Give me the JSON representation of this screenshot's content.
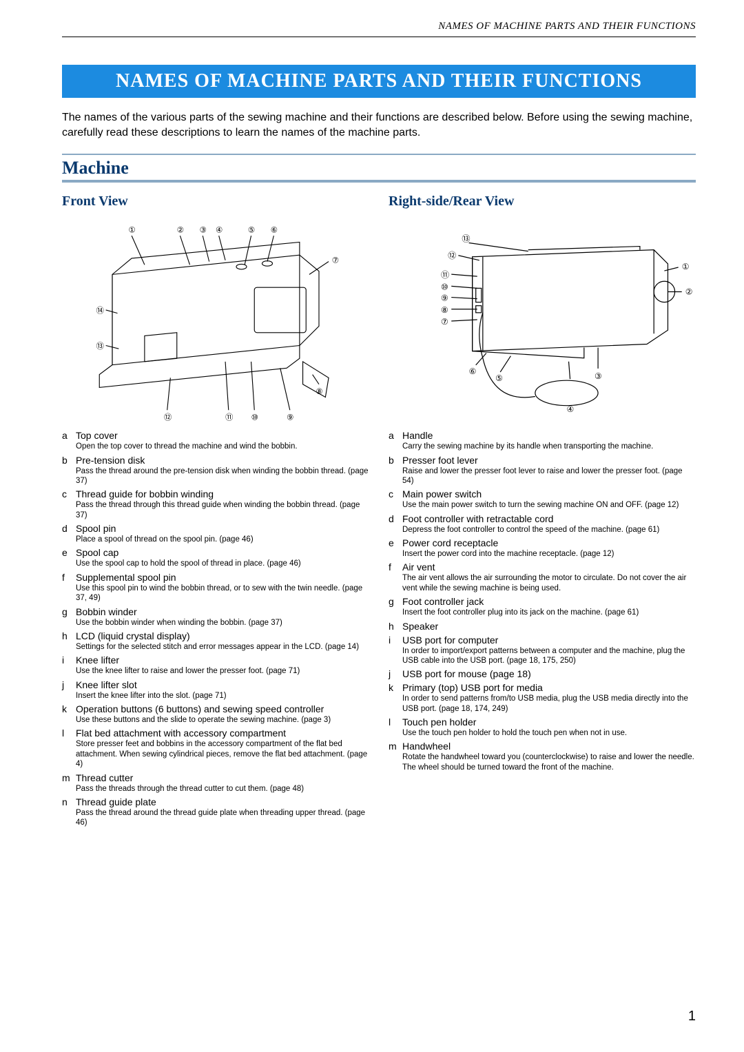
{
  "running_header": "NAMES OF MACHINE PARTS AND THEIR FUNCTIONS",
  "title": "NAMES OF MACHINE PARTS AND THEIR FUNCTIONS",
  "intro": "The names of the various parts of the sewing machine and their functions are described below. Before using the sewing machine, carefully read these descriptions to learn the names of the machine parts.",
  "section_heading": "Machine",
  "page_number": "1",
  "colors": {
    "band_bg": "#1c8be0",
    "band_text": "#ffffff",
    "heading_text": "#0b3a6e",
    "heading_border": "#8aa9c4",
    "body_text": "#000000",
    "page_bg": "#ffffff"
  },
  "front": {
    "heading": "Front View",
    "callouts": [
      "①",
      "②",
      "③",
      "④",
      "⑤",
      "⑥",
      "⑦",
      "⑧",
      "⑨",
      "⑩",
      "⑪",
      "⑫",
      "⑬",
      "⑭"
    ],
    "parts": [
      {
        "letter": "a",
        "name": "Top cover",
        "desc": "Open the top cover to thread the machine and wind the bobbin."
      },
      {
        "letter": "b",
        "name": "Pre-tension disk",
        "desc": "Pass the thread around the pre-tension disk when winding the bobbin thread. (page 37)"
      },
      {
        "letter": "c",
        "name": "Thread guide for bobbin winding",
        "desc": "Pass the thread through this thread guide when winding the bobbin thread. (page 37)"
      },
      {
        "letter": "d",
        "name": "Spool pin",
        "desc": "Place a spool of thread on the spool pin. (page 46)"
      },
      {
        "letter": "e",
        "name": "Spool cap",
        "desc": "Use the spool cap to hold the spool of thread in place. (page 46)"
      },
      {
        "letter": "f",
        "name": "Supplemental spool pin",
        "desc": "Use this spool pin to wind the bobbin thread, or to sew with the twin needle. (page 37, 49)"
      },
      {
        "letter": "g",
        "name": "Bobbin winder",
        "desc": "Use the bobbin winder when winding the bobbin. (page 37)"
      },
      {
        "letter": "h",
        "name": "LCD (liquid crystal display)",
        "desc": "Settings for the selected stitch and error messages appear in the LCD. (page 14)"
      },
      {
        "letter": "i",
        "name": "Knee lifter",
        "desc": "Use the knee lifter to raise and lower the presser foot. (page 71)"
      },
      {
        "letter": "j",
        "name": "Knee lifter slot",
        "desc": "Insert the knee lifter into the slot. (page 71)"
      },
      {
        "letter": "k",
        "name": "Operation buttons (6 buttons) and sewing speed controller",
        "desc": "Use these buttons and the slide to operate the sewing machine. (page 3)"
      },
      {
        "letter": "l",
        "name": "Flat bed attachment with accessory compartment",
        "desc": "Store presser feet and bobbins in the accessory compartment of the flat bed attachment. When sewing cylindrical pieces, remove the flat bed attachment. (page 4)"
      },
      {
        "letter": "m",
        "name": "Thread cutter",
        "desc": "Pass the threads through the thread cutter to cut them. (page 48)"
      },
      {
        "letter": "n",
        "name": "Thread guide plate",
        "desc": "Pass the thread around the thread guide plate when threading upper thread. (page 46)"
      }
    ]
  },
  "rear": {
    "heading": "Right-side/Rear View",
    "callouts": [
      "①",
      "②",
      "③",
      "④",
      "⑤",
      "⑥",
      "⑦",
      "⑧",
      "⑨",
      "⑩",
      "⑪",
      "⑫",
      "⑬"
    ],
    "parts": [
      {
        "letter": "a",
        "name": "Handle",
        "desc": "Carry the sewing machine by its handle when transporting the machine."
      },
      {
        "letter": "b",
        "name": "Presser foot lever",
        "desc": "Raise and lower the presser foot lever to raise and lower the presser foot. (page 54)"
      },
      {
        "letter": "c",
        "name": "Main power switch",
        "desc": "Use the main power switch to turn the sewing machine ON and OFF. (page 12)"
      },
      {
        "letter": "d",
        "name": "Foot controller with retractable cord",
        "desc": "Depress the foot controller to control the speed of the machine. (page 61)"
      },
      {
        "letter": "e",
        "name": "Power cord receptacle",
        "desc": "Insert the power cord into the machine receptacle. (page 12)"
      },
      {
        "letter": "f",
        "name": "Air vent",
        "desc": "The air vent allows the air surrounding the motor to circulate. Do not cover the air vent while the sewing machine is being used."
      },
      {
        "letter": "g",
        "name": "Foot controller jack",
        "desc": "Insert the foot controller plug into its jack on the machine. (page 61)"
      },
      {
        "letter": "h",
        "name": "Speaker",
        "desc": ""
      },
      {
        "letter": "i",
        "name": "USB port for computer",
        "desc": "In order to import/export patterns between a computer and the machine, plug the USB cable into the USB port. (page 18, 175, 250)"
      },
      {
        "letter": "j",
        "name": "USB port for mouse (page 18)",
        "desc": ""
      },
      {
        "letter": "k",
        "name": "Primary (top) USB port for media",
        "desc": "In order to send patterns from/to USB media, plug the USB media directly into the USB port. (page 18, 174, 249)"
      },
      {
        "letter": "l",
        "name": "Touch pen holder",
        "desc": "Use the touch pen holder to hold the touch pen when not in use."
      },
      {
        "letter": "m",
        "name": "Handwheel",
        "desc": "Rotate the handwheel toward you (counterclockwise) to raise and lower the needle. The wheel should be turned toward the front of the machine."
      }
    ]
  }
}
